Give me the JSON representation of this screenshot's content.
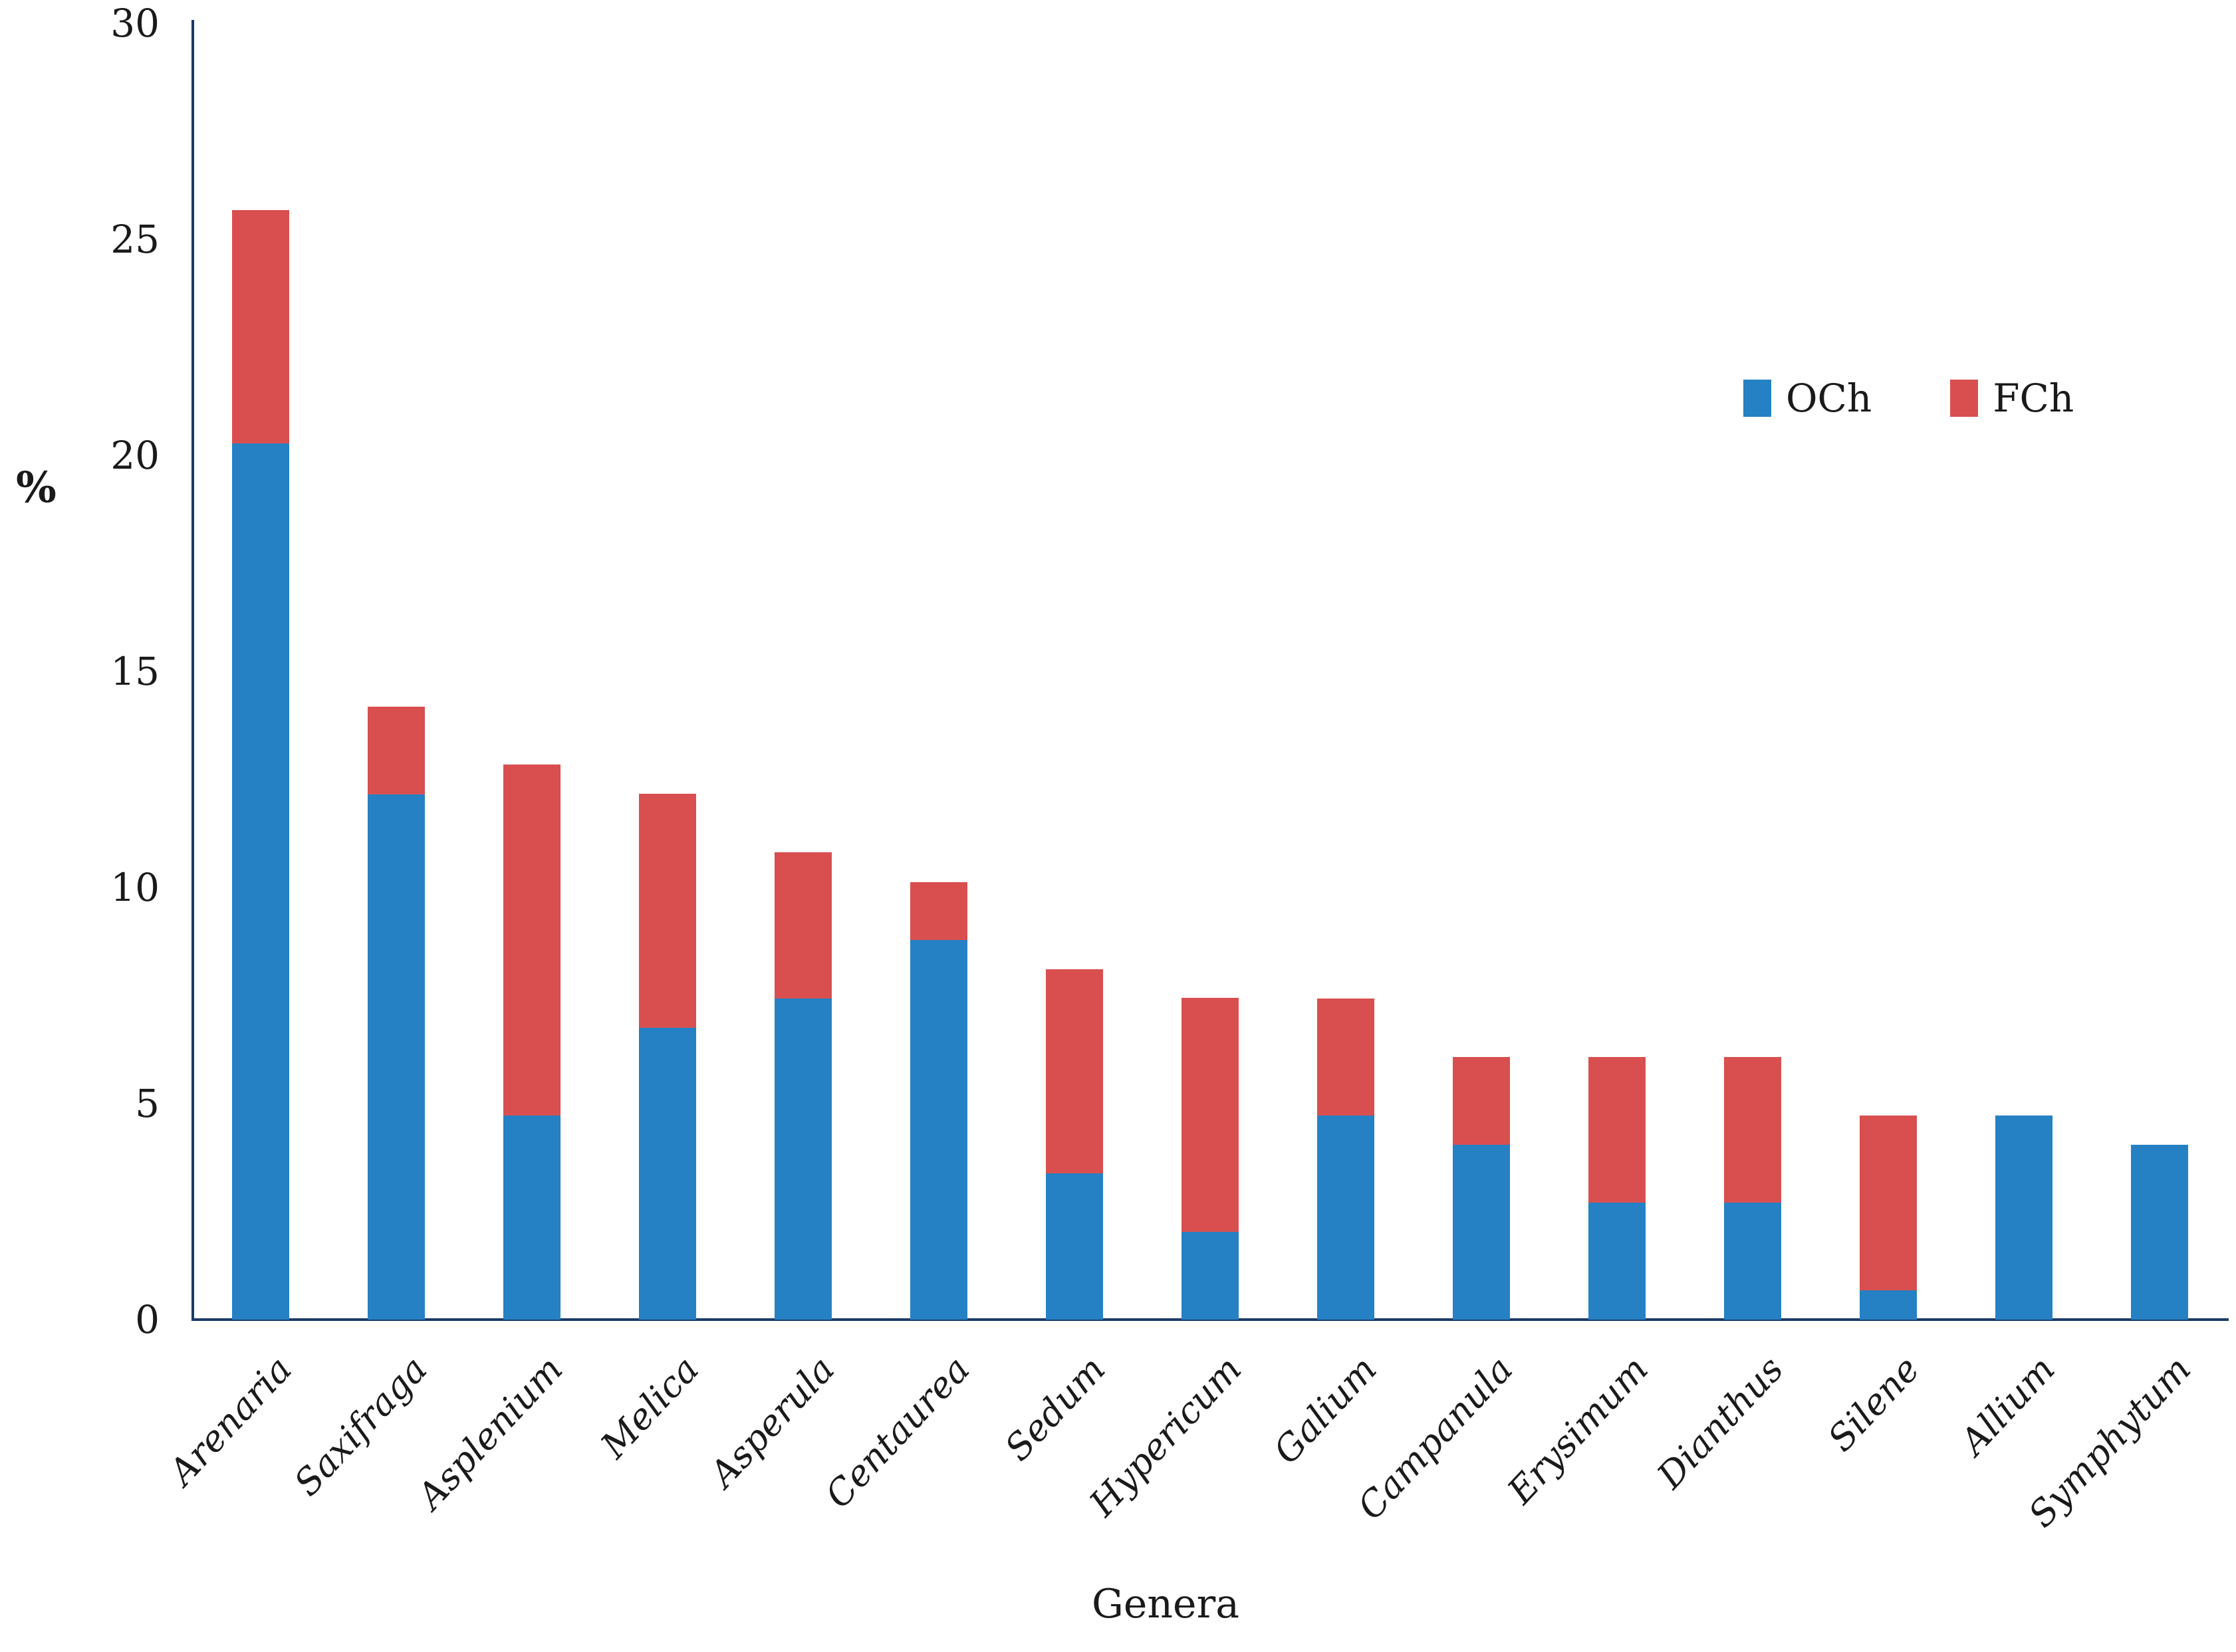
{
  "chart_data": {
    "type": "bar",
    "stacked": true,
    "title": "",
    "xlabel": "Genera",
    "ylabel": "%",
    "ylim": [
      0,
      30
    ],
    "yticks": [
      0,
      5,
      10,
      15,
      20,
      25,
      30
    ],
    "grid": false,
    "legend_position": "top-right",
    "categories": [
      "Arenaria",
      "Saxifraga",
      "Asplenium",
      "Melica",
      "Asperula",
      "Centaurea",
      "Sedum",
      "Hypericum",
      "Galium",
      "Campanula",
      "Erysimum",
      "Dianthus",
      "Silene",
      "Allium",
      "Symphytum"
    ],
    "series": [
      {
        "name": "OCh",
        "color": "#2581C4",
        "values": [
          20.27,
          12.16,
          4.73,
          6.76,
          7.43,
          8.78,
          3.38,
          2.03,
          4.73,
          4.05,
          2.7,
          2.7,
          0.68,
          4.73,
          4.05
        ]
      },
      {
        "name": "FCh",
        "color": "#D94F4F",
        "values": [
          5.41,
          2.03,
          8.11,
          5.41,
          3.38,
          1.35,
          4.73,
          5.41,
          2.7,
          2.03,
          3.38,
          3.38,
          4.05,
          0,
          0
        ]
      }
    ],
    "axis_color": "#1b3a68",
    "text_color": "#1a1a1a"
  }
}
